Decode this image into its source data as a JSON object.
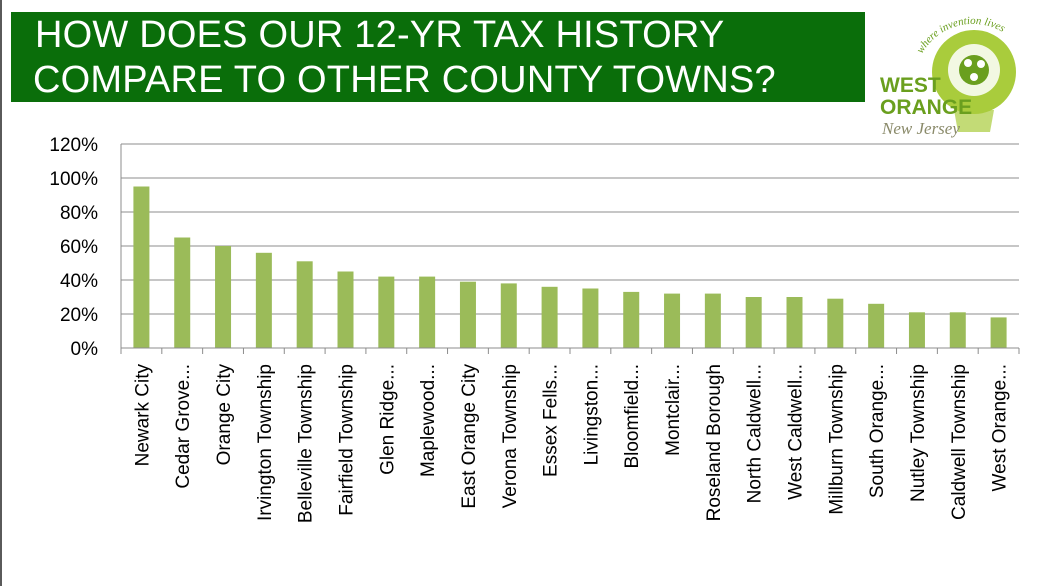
{
  "header": {
    "title_line1": "HOW DOES OUR 12-YR TAX HISTORY",
    "title_line2": "COMPARE TO OTHER COUNTY TOWNS?",
    "banner_color": "#0a6e0a"
  },
  "logo": {
    "text_main1": "WEST",
    "text_main2": "ORANGE",
    "text_script": "New Jersey",
    "text_tagline": "where invention lives",
    "colors": {
      "green": "#6a9f1e",
      "light_green": "#a9cc3c",
      "gray": "#8a8a6a"
    }
  },
  "chart_data": {
    "type": "bar",
    "title": "",
    "xlabel": "",
    "ylabel": "",
    "ylim": [
      0,
      120
    ],
    "y_ticks": [
      "0%",
      "20%",
      "40%",
      "60%",
      "80%",
      "100%",
      "120%"
    ],
    "grid": true,
    "bar_color": "#9bbb59",
    "categories": [
      "Newark City",
      "Cedar Grove...",
      "Orange City",
      "Irvington Township",
      "Belleville Township",
      "Fairfield Township",
      "Glen Ridge...",
      "Maplewood...",
      "East Orange City",
      "Verona Township",
      "Essex Fells...",
      "Livingston...",
      "Bloomfield...",
      "Montclair...",
      "Roseland Borough",
      "North Caldwell...",
      "West Caldwell...",
      "Millburn Township",
      "South Orange...",
      "Nutley Township",
      "Caldwell Township",
      "West Orange..."
    ],
    "values": [
      95,
      65,
      60,
      56,
      51,
      45,
      42,
      42,
      39,
      38,
      36,
      35,
      33,
      32,
      32,
      30,
      30,
      29,
      26,
      21,
      21,
      18
    ]
  }
}
